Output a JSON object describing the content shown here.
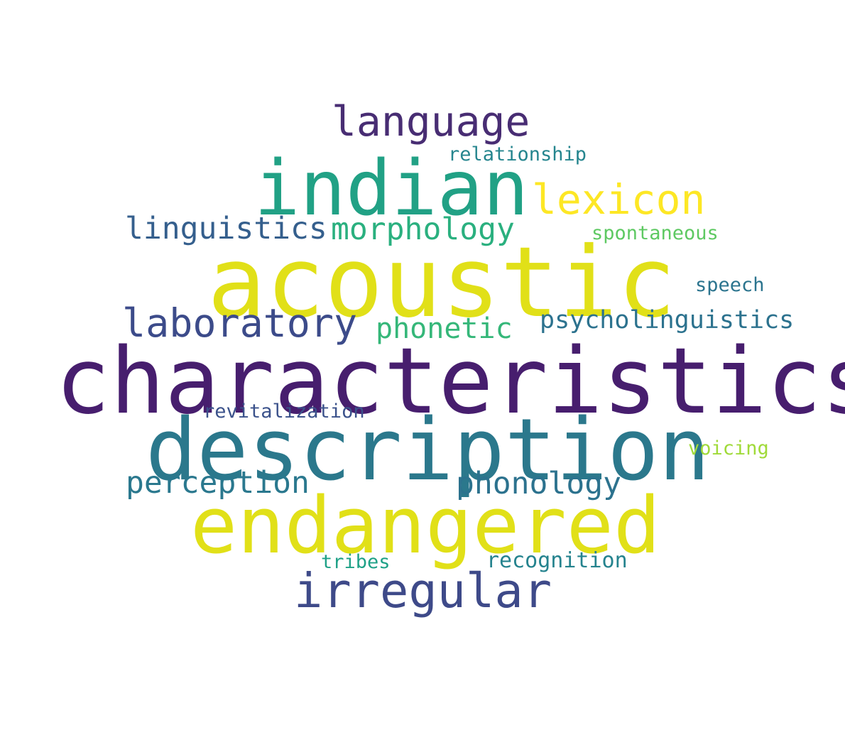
{
  "words": [
    {
      "key": "characteristics",
      "text": "characteristics",
      "color": "#471e6e"
    },
    {
      "key": "acoustic",
      "text": "acoustic",
      "color": "#e1e018"
    },
    {
      "key": "description",
      "text": "description",
      "color": "#2b788c"
    },
    {
      "key": "endangered",
      "text": "endangered",
      "color": "#e1e018"
    },
    {
      "key": "indian",
      "text": "indian",
      "color": "#21a185"
    },
    {
      "key": "irregular",
      "text": "irregular",
      "color": "#3e4a89"
    },
    {
      "key": "language",
      "text": "language",
      "color": "#482d73"
    },
    {
      "key": "lexicon",
      "text": "lexicon",
      "color": "#fde725"
    },
    {
      "key": "laboratory",
      "text": "laboratory",
      "color": "#3c4b8a"
    },
    {
      "key": "linguistics",
      "text": "linguistics",
      "color": "#355f8d"
    },
    {
      "key": "morphology",
      "text": "morphology",
      "color": "#2ab07f"
    },
    {
      "key": "phonetic",
      "text": "phonetic",
      "color": "#35b779"
    },
    {
      "key": "perception",
      "text": "perception",
      "color": "#2a788e"
    },
    {
      "key": "phonology",
      "text": "phonology",
      "color": "#2c728e"
    },
    {
      "key": "psycholinguistics",
      "text": "psycholinguistics",
      "color": "#2c728e"
    },
    {
      "key": "relationship",
      "text": "relationship",
      "color": "#25858e"
    },
    {
      "key": "spontaneous",
      "text": "spontaneous",
      "color": "#5ec962"
    },
    {
      "key": "speech",
      "text": "speech",
      "color": "#2b748e"
    },
    {
      "key": "revitalization",
      "text": "revitalization",
      "color": "#3b528b"
    },
    {
      "key": "voicing",
      "text": "voicing",
      "color": "#a0da39"
    },
    {
      "key": "tribes",
      "text": "tribes",
      "color": "#1fa187"
    },
    {
      "key": "recognition",
      "text": "recognition",
      "color": "#25838e"
    }
  ]
}
